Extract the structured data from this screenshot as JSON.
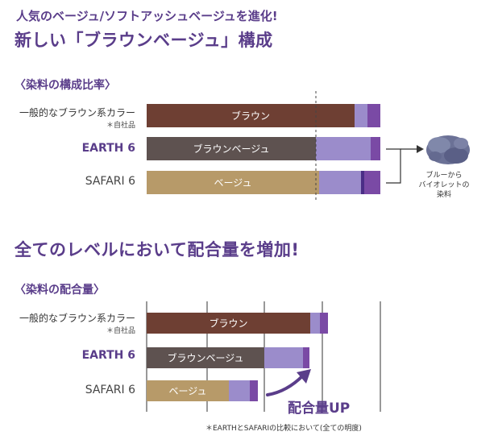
{
  "header": {
    "line1": "人気のベージュ/ソフトアッシュベージュを進化!",
    "line2": "新しい「ブラウンベージュ」構成"
  },
  "section1": {
    "heading": "〈染料の構成比率〉",
    "note_lines": [
      "ブルーから",
      "バイオレットの",
      "染料"
    ]
  },
  "section2": {
    "headline": "全てのレベルにおいて配合量を増加!",
    "heading": "〈染料の配合量〉",
    "badge": "配合量UP",
    "footnote": "＊EARTHとSAFARIの比較において(全ての明度)"
  },
  "rows": {
    "generic_label": "一般的なブラウン系カラー",
    "generic_sub": "＊自社品",
    "earth_label": "EARTH 6",
    "safari_label": "SAFARI 6"
  },
  "colors": {
    "brown": "#6e3f33",
    "brown_beige": "#5e5250",
    "beige": "#b79a69",
    "light_violet": "#9b8ccb",
    "violet": "#7a4aa5",
    "dark_violet": "#4a2d86",
    "accent": "#5a3d8a"
  },
  "chart_data": [
    {
      "type": "bar",
      "title": "〈染料の構成比率〉",
      "stacked": true,
      "categories": [
        "一般的なブラウン系カラー",
        "EARTH 6",
        "SAFARI 6"
      ],
      "xlim": [
        0,
        290
      ],
      "reference_line": 210,
      "rows": [
        {
          "category": "一般的なブラウン系カラー",
          "segments": [
            {
              "label": "ブラウン",
              "value": 258,
              "color": "#6e3f33"
            },
            {
              "label": "",
              "value": 16,
              "color": "#9b8ccb"
            },
            {
              "label": "",
              "value": 16,
              "color": "#7a4aa5"
            }
          ]
        },
        {
          "category": "EARTH 6",
          "segments": [
            {
              "label": "ブラウンベージュ",
              "value": 210,
              "color": "#5e5250"
            },
            {
              "label": "",
              "value": 68,
              "color": "#9b8ccb"
            },
            {
              "label": "",
              "value": 12,
              "color": "#7a4aa5"
            }
          ]
        },
        {
          "category": "SAFARI 6",
          "segments": [
            {
              "label": "ベージュ",
              "value": 214,
              "color": "#b79a69"
            },
            {
              "label": "",
              "value": 52,
              "color": "#9b8ccb"
            },
            {
              "label": "",
              "value": 4,
              "color": "#4a2d86"
            },
            {
              "label": "",
              "value": 20,
              "color": "#7a4aa5"
            }
          ]
        }
      ]
    },
    {
      "type": "bar",
      "title": "〈染料の配合量〉",
      "stacked": true,
      "categories": [
        "一般的なブラウン系カラー",
        "EARTH 6",
        "SAFARI 6"
      ],
      "xlim": [
        0,
        290
      ],
      "grid": true,
      "rows": [
        {
          "category": "一般的なブラウン系カラー",
          "segments": [
            {
              "label": "ブラウン",
              "value": 203,
              "color": "#6e3f33"
            },
            {
              "label": "",
              "value": 12,
              "color": "#9b8ccb"
            },
            {
              "label": "",
              "value": 10,
              "color": "#7a4aa5"
            }
          ]
        },
        {
          "category": "EARTH 6",
          "segments": [
            {
              "label": "ブラウンベージュ",
              "value": 146,
              "color": "#5e5250"
            },
            {
              "label": "",
              "value": 48,
              "color": "#9b8ccb"
            },
            {
              "label": "",
              "value": 8,
              "color": "#7a4aa5"
            }
          ]
        },
        {
          "category": "SAFARI 6",
          "segments": [
            {
              "label": "ベージュ",
              "value": 102,
              "color": "#b79a69"
            },
            {
              "label": "",
              "value": 26,
              "color": "#9b8ccb"
            },
            {
              "label": "",
              "value": 10,
              "color": "#7a4aa5"
            }
          ]
        }
      ]
    }
  ]
}
